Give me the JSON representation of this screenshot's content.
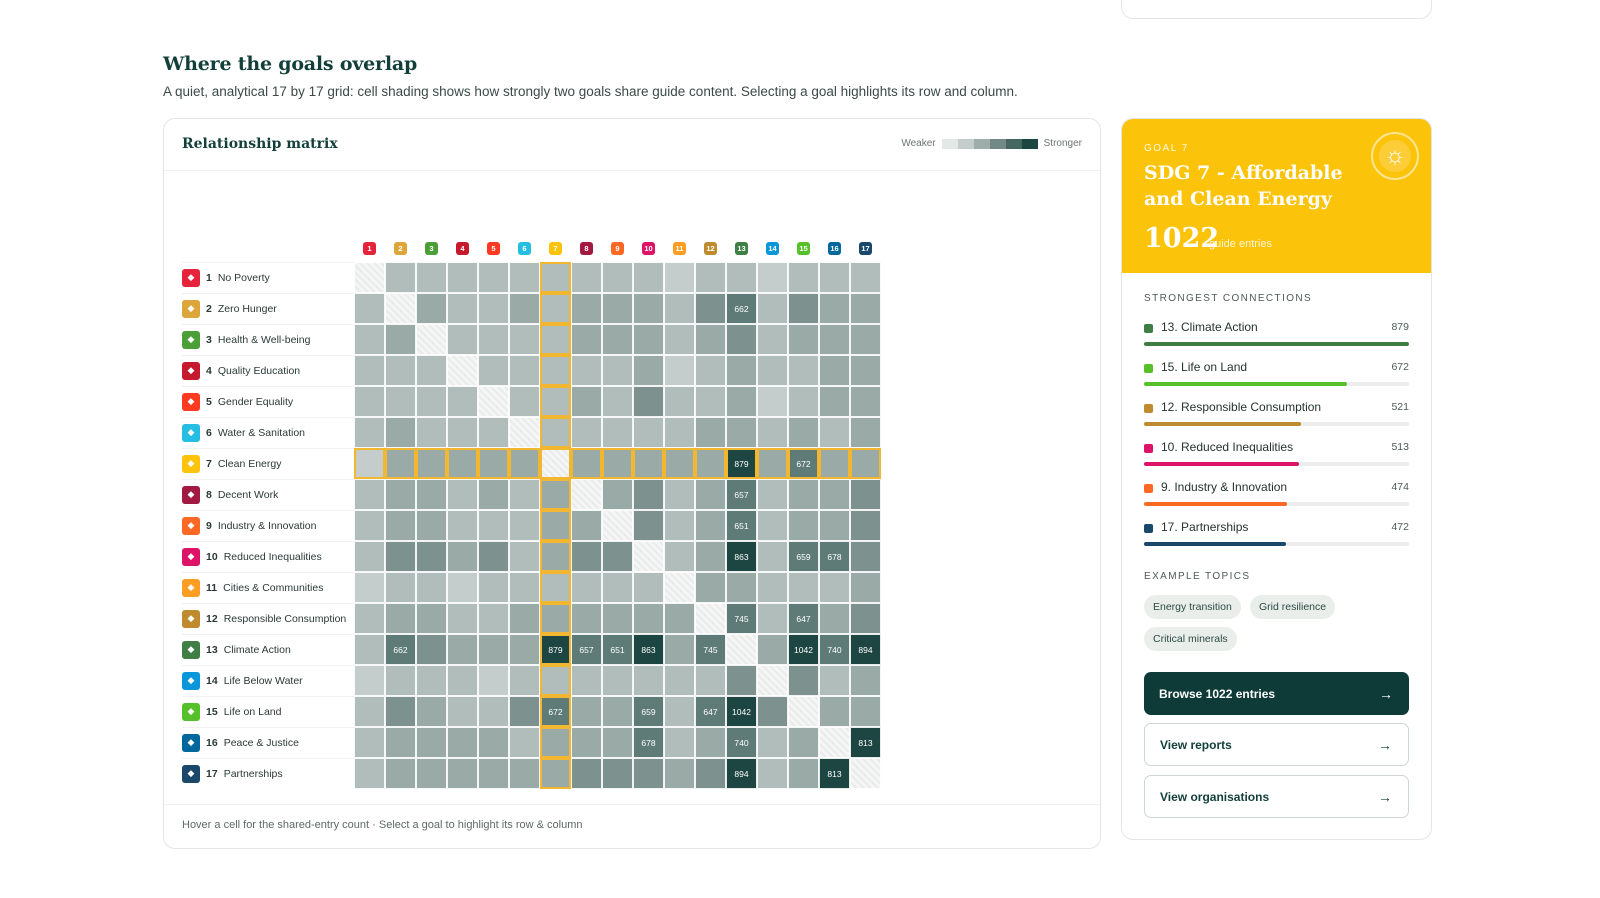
{
  "section": {
    "title": "Where the goals overlap",
    "subtitle": "A quiet, analytical 17 by 17 grid: cell shading shows how strongly two goals share guide content. Selecting a goal highlights its row and column."
  },
  "matrix": {
    "title": "Relationship matrix",
    "legend_weaker": "Weaker",
    "legend_stronger": "Stronger",
    "legend_colors": [
      "#e3e7e6",
      "#c4cdcb",
      "#9fadaa",
      "#738985",
      "#456762",
      "#1d4541"
    ],
    "footer": "Hover a cell for the shared-entry count · Select a goal to highlight its row & column",
    "selected_goal": 7,
    "goals": [
      {
        "num": "1",
        "label": "No Poverty",
        "color": "#e5243b"
      },
      {
        "num": "2",
        "label": "Zero Hunger",
        "color": "#dda63a"
      },
      {
        "num": "3",
        "label": "Health & Well-being",
        "color": "#4c9f38"
      },
      {
        "num": "4",
        "label": "Quality Education",
        "color": "#c5192d"
      },
      {
        "num": "5",
        "label": "Gender Equality",
        "color": "#ff3a21"
      },
      {
        "num": "6",
        "label": "Water & Sanitation",
        "color": "#26bde2"
      },
      {
        "num": "7",
        "label": "Clean Energy",
        "color": "#fcc30b"
      },
      {
        "num": "8",
        "label": "Decent Work",
        "color": "#a21942"
      },
      {
        "num": "9",
        "label": "Industry & Innovation",
        "color": "#fd6925"
      },
      {
        "num": "10",
        "label": "Reduced Inequalities",
        "color": "#dd1367"
      },
      {
        "num": "11",
        "label": "Cities & Communities",
        "color": "#fd9d24"
      },
      {
        "num": "12",
        "label": "Responsible Consumption",
        "color": "#bf8b2e"
      },
      {
        "num": "13",
        "label": "Climate Action",
        "color": "#3f7e44"
      },
      {
        "num": "14",
        "label": "Life Below Water",
        "color": "#0a97d9"
      },
      {
        "num": "15",
        "label": "Life on Land",
        "color": "#56c02b"
      },
      {
        "num": "16",
        "label": "Peace & Justice",
        "color": "#00689d"
      },
      {
        "num": "17",
        "label": "Partnerships",
        "color": "#19486a"
      }
    ],
    "levels": [
      [
        9,
        2,
        2,
        2,
        2,
        2,
        2,
        2,
        2,
        2,
        1,
        2,
        2,
        1,
        2,
        2,
        2
      ],
      [
        2,
        9,
        3,
        2,
        2,
        3,
        2,
        3,
        3,
        3,
        2,
        4,
        5,
        2,
        4,
        3,
        3
      ],
      [
        2,
        3,
        9,
        2,
        2,
        2,
        2,
        3,
        3,
        3,
        2,
        3,
        4,
        2,
        3,
        3,
        3
      ],
      [
        2,
        2,
        2,
        9,
        2,
        2,
        2,
        2,
        2,
        3,
        1,
        2,
        3,
        2,
        2,
        3,
        3
      ],
      [
        2,
        2,
        2,
        2,
        9,
        2,
        2,
        3,
        2,
        4,
        2,
        2,
        3,
        1,
        2,
        3,
        3
      ],
      [
        2,
        3,
        2,
        2,
        2,
        9,
        2,
        2,
        2,
        2,
        2,
        3,
        3,
        2,
        3,
        2,
        3
      ],
      [
        1,
        3,
        3,
        3,
        3,
        3,
        9,
        3,
        3,
        3,
        3,
        3,
        6,
        3,
        5,
        3,
        3
      ],
      [
        2,
        3,
        3,
        2,
        3,
        2,
        3,
        9,
        3,
        4,
        2,
        3,
        5,
        2,
        3,
        3,
        4
      ],
      [
        2,
        3,
        3,
        2,
        2,
        2,
        3,
        3,
        9,
        4,
        2,
        3,
        5,
        2,
        3,
        3,
        4
      ],
      [
        2,
        4,
        4,
        3,
        4,
        2,
        3,
        4,
        4,
        9,
        2,
        3,
        6,
        2,
        5,
        5,
        4
      ],
      [
        1,
        2,
        2,
        1,
        2,
        2,
        2,
        2,
        2,
        2,
        9,
        3,
        3,
        2,
        2,
        2,
        3
      ],
      [
        2,
        3,
        3,
        2,
        2,
        3,
        3,
        3,
        3,
        3,
        3,
        9,
        5,
        2,
        5,
        3,
        4
      ],
      [
        2,
        5,
        4,
        3,
        3,
        3,
        6,
        5,
        5,
        6,
        3,
        5,
        9,
        3,
        6,
        5,
        6
      ],
      [
        1,
        2,
        2,
        2,
        1,
        2,
        2,
        2,
        2,
        2,
        2,
        2,
        4,
        9,
        4,
        2,
        3
      ],
      [
        2,
        4,
        3,
        2,
        2,
        4,
        5,
        3,
        3,
        5,
        2,
        5,
        6,
        4,
        9,
        3,
        3
      ],
      [
        2,
        3,
        3,
        3,
        3,
        2,
        3,
        3,
        3,
        5,
        2,
        3,
        5,
        2,
        3,
        9,
        6
      ],
      [
        2,
        3,
        3,
        3,
        3,
        3,
        3,
        4,
        4,
        4,
        3,
        4,
        6,
        2,
        3,
        6,
        9
      ]
    ],
    "counts": [
      [
        "",
        "",
        "",
        "",
        "",
        "",
        "",
        "",
        "",
        "",
        "",
        "",
        "",
        "",
        "",
        "",
        ""
      ],
      [
        "",
        "",
        "",
        "",
        "",
        "",
        "",
        "",
        "",
        "",
        "",
        "",
        "662",
        "",
        "",
        "",
        ""
      ],
      [
        "",
        "",
        "",
        "",
        "",
        "",
        "",
        "",
        "",
        "",
        "",
        "",
        "",
        "",
        "",
        "",
        ""
      ],
      [
        "",
        "",
        "",
        "",
        "",
        "",
        "",
        "",
        "",
        "",
        "",
        "",
        "",
        "",
        "",
        "",
        ""
      ],
      [
        "",
        "",
        "",
        "",
        "",
        "",
        "",
        "",
        "",
        "",
        "",
        "",
        "",
        "",
        "",
        "",
        ""
      ],
      [
        "",
        "",
        "",
        "",
        "",
        "",
        "",
        "",
        "",
        "",
        "",
        "",
        "",
        "",
        "",
        "",
        ""
      ],
      [
        "",
        "",
        "",
        "",
        "",
        "",
        "",
        "",
        "",
        "",
        "",
        "",
        "879",
        "",
        "672",
        "",
        ""
      ],
      [
        "",
        "",
        "",
        "",
        "",
        "",
        "",
        "",
        "",
        "",
        "",
        "",
        "657",
        "",
        "",
        "",
        ""
      ],
      [
        "",
        "",
        "",
        "",
        "",
        "",
        "",
        "",
        "",
        "",
        "",
        "",
        "651",
        "",
        "",
        "",
        ""
      ],
      [
        "",
        "",
        "",
        "",
        "",
        "",
        "",
        "",
        "",
        "",
        "",
        "",
        "863",
        "",
        "659",
        "678",
        ""
      ],
      [
        "",
        "",
        "",
        "",
        "",
        "",
        "",
        "",
        "",
        "",
        "",
        "",
        "",
        "",
        "",
        "",
        ""
      ],
      [
        "",
        "",
        "",
        "",
        "",
        "",
        "",
        "",
        "",
        "",
        "",
        "",
        "745",
        "",
        "647",
        "",
        ""
      ],
      [
        "",
        "662",
        "",
        "",
        "",
        "",
        "879",
        "657",
        "651",
        "863",
        "",
        "745",
        "",
        "",
        "1042",
        "740",
        "894"
      ],
      [
        "",
        "",
        "",
        "",
        "",
        "",
        "",
        "",
        "",
        "",
        "",
        "",
        "",
        "",
        "",
        "",
        ""
      ],
      [
        "",
        "",
        "",
        "",
        "",
        "",
        "672",
        "",
        "",
        "659",
        "",
        "647",
        "1042",
        "",
        "",
        "",
        ""
      ],
      [
        "",
        "",
        "",
        "",
        "",
        "",
        "",
        "",
        "",
        "678",
        "",
        "",
        "740",
        "",
        "",
        "",
        "813"
      ],
      [
        "",
        "",
        "",
        "",
        "",
        "",
        "",
        "",
        "",
        "",
        "",
        "",
        "894",
        "",
        "",
        "813",
        ""
      ]
    ]
  },
  "panel": {
    "kicker": "GOAL 7",
    "title": "SDG 7 - Affordable and Clean Energy",
    "count": "1022",
    "count_label": "guide entries",
    "icon": "sun-icon",
    "connections_heading": "STRONGEST CONNECTIONS",
    "connections": [
      {
        "name": "13. Climate Action",
        "value": "879",
        "color": "#3f7e44",
        "fill": 1.0
      },
      {
        "name": "15. Life on Land",
        "value": "672",
        "color": "#56c02b",
        "fill": 0.765
      },
      {
        "name": "12. Responsible Consumption",
        "value": "521",
        "color": "#bf8b2e",
        "fill": 0.593
      },
      {
        "name": "10. Reduced Inequalities",
        "value": "513",
        "color": "#dd1367",
        "fill": 0.584
      },
      {
        "name": "9. Industry & Innovation",
        "value": "474",
        "color": "#fd6925",
        "fill": 0.54
      },
      {
        "name": "17. Partnerships",
        "value": "472",
        "color": "#19486a",
        "fill": 0.537
      }
    ],
    "topics_heading": "EXAMPLE TOPICS",
    "topics": [
      "Energy transition",
      "Grid resilience",
      "Critical minerals"
    ],
    "buttons": [
      {
        "label": "Browse 1022 entries",
        "style": "primary"
      },
      {
        "label": "View reports",
        "style": "outline"
      },
      {
        "label": "View organisations",
        "style": "outline"
      }
    ]
  }
}
